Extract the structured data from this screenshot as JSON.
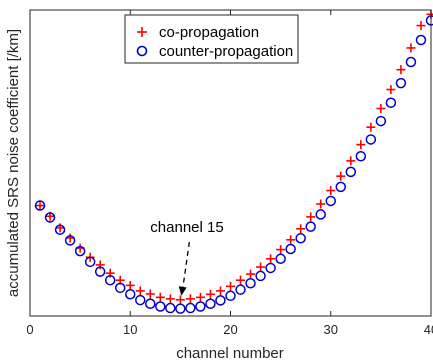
{
  "chart_data": {
    "type": "scatter",
    "xlabel": "channel number",
    "ylabel": "accumulated SRS noise coefficient [/km]",
    "xlim": [
      0,
      40
    ],
    "xticks": [
      0,
      10,
      20,
      30,
      40
    ],
    "ylim": [
      0,
      1
    ],
    "yticks_labeled": false,
    "grid": false,
    "legend_position": "top-center",
    "series": [
      {
        "name": "co-propagation",
        "marker": "plus",
        "color": "#ff0000",
        "x": [
          1,
          2,
          3,
          4,
          5,
          6,
          7,
          8,
          9,
          10,
          11,
          12,
          13,
          14,
          15,
          16,
          17,
          18,
          19,
          20,
          21,
          22,
          23,
          24,
          25,
          26,
          27,
          28,
          29,
          30,
          31,
          32,
          33,
          34,
          35,
          36,
          37,
          38,
          39,
          40
        ],
        "y": [
          0.361,
          0.326,
          0.288,
          0.255,
          0.222,
          0.192,
          0.167,
          0.14,
          0.117,
          0.1,
          0.082,
          0.072,
          0.061,
          0.056,
          0.053,
          0.056,
          0.061,
          0.071,
          0.082,
          0.097,
          0.117,
          0.137,
          0.16,
          0.187,
          0.217,
          0.249,
          0.285,
          0.324,
          0.366,
          0.41,
          0.457,
          0.507,
          0.56,
          0.617,
          0.678,
          0.74,
          0.805,
          0.876,
          0.949,
          0.986
        ]
      },
      {
        "name": "counter-propagation",
        "marker": "circle",
        "color": "#0000cc",
        "x": [
          1,
          2,
          3,
          4,
          5,
          6,
          7,
          8,
          9,
          10,
          11,
          12,
          13,
          14,
          15,
          16,
          17,
          18,
          19,
          20,
          21,
          22,
          23,
          24,
          25,
          26,
          27,
          28,
          29,
          30,
          31,
          32,
          33,
          34,
          35,
          36,
          37,
          38,
          39,
          40
        ],
        "y": [
          0.361,
          0.322,
          0.282,
          0.247,
          0.212,
          0.177,
          0.145,
          0.117,
          0.092,
          0.071,
          0.052,
          0.04,
          0.031,
          0.026,
          0.024,
          0.026,
          0.031,
          0.04,
          0.051,
          0.066,
          0.086,
          0.107,
          0.131,
          0.157,
          0.187,
          0.219,
          0.254,
          0.292,
          0.332,
          0.376,
          0.422,
          0.471,
          0.522,
          0.577,
          0.637,
          0.697,
          0.761,
          0.83,
          0.902,
          0.966
        ]
      }
    ],
    "annotations": [
      {
        "text": "channel 15",
        "x": 15,
        "y": 0.053,
        "style": "dashed-arrow"
      }
    ]
  }
}
